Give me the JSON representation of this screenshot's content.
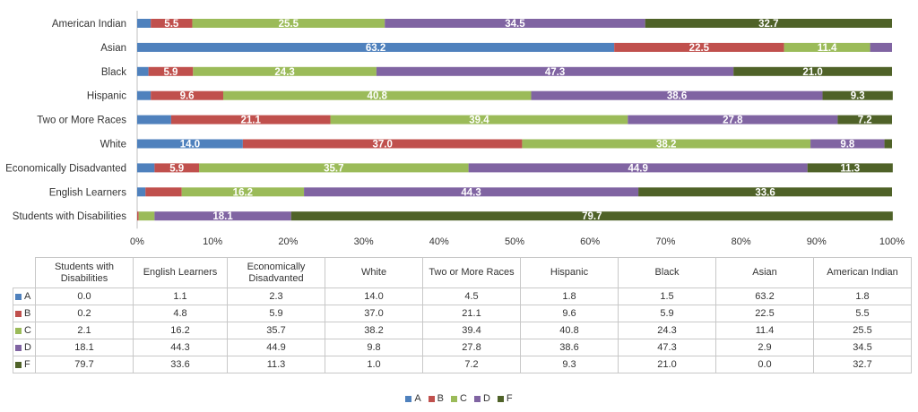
{
  "chart_data": {
    "type": "bar",
    "orientation": "horizontal",
    "stacked": "percent",
    "categories": [
      "American Indian",
      "Asian",
      "Black",
      "Hispanic",
      "Two or More Races",
      "White",
      "Economically Disadvanted",
      "English Learners",
      "Students with Disabilities"
    ],
    "series": [
      {
        "name": "A",
        "color": "#4F81BD",
        "values": [
          1.8,
          63.2,
          1.5,
          1.8,
          4.5,
          14.0,
          2.3,
          1.1,
          0.0
        ]
      },
      {
        "name": "B",
        "color": "#C0504D",
        "values": [
          5.5,
          22.5,
          5.9,
          9.6,
          21.1,
          37.0,
          5.9,
          4.8,
          0.2
        ]
      },
      {
        "name": "C",
        "color": "#9BBB59",
        "values": [
          25.5,
          11.4,
          24.3,
          40.8,
          39.4,
          38.2,
          35.7,
          16.2,
          2.1
        ]
      },
      {
        "name": "D",
        "color": "#8064A2",
        "values": [
          34.5,
          2.9,
          47.3,
          38.6,
          27.8,
          9.8,
          44.9,
          44.3,
          18.1
        ]
      },
      {
        "name": "F",
        "color": "#4F6228",
        "values": [
          32.7,
          0.0,
          21.0,
          9.3,
          7.2,
          1.0,
          11.3,
          33.6,
          79.7
        ]
      }
    ],
    "bar_labels": [
      [
        null,
        "5.5",
        "25.5",
        "34.5",
        "32.7"
      ],
      [
        "63.2",
        "22.5",
        "11.4",
        null,
        null
      ],
      [
        null,
        "5.9",
        "24.3",
        "47.3",
        "21.0"
      ],
      [
        null,
        "9.6",
        "40.8",
        "38.6",
        "9.3"
      ],
      [
        null,
        "21.1",
        "39.4",
        "27.8",
        "7.2"
      ],
      [
        "14.0",
        "37.0",
        "38.2",
        "9.8",
        null
      ],
      [
        null,
        "5.9",
        "35.7",
        "44.9",
        "11.3"
      ],
      [
        null,
        null,
        "16.2",
        "44.3",
        "33.6"
      ],
      [
        null,
        null,
        null,
        "18.1",
        "79.7"
      ]
    ],
    "x_ticks": [
      "0%",
      "10%",
      "20%",
      "30%",
      "40%",
      "50%",
      "60%",
      "70%",
      "80%",
      "90%",
      "100%"
    ],
    "xlim": [
      0,
      100
    ],
    "grid": false,
    "legend": "bottom"
  },
  "table": {
    "columns": [
      "Students with Disabilities",
      "English Learners",
      "Economically Disadvanted",
      "White",
      "Two or More Races",
      "Hispanic",
      "Black",
      "Asian",
      "American Indian"
    ],
    "rows": [
      {
        "label": "A",
        "cells": [
          "0.0",
          "1.1",
          "2.3",
          "14.0",
          "4.5",
          "1.8",
          "1.5",
          "63.2",
          "1.8"
        ]
      },
      {
        "label": "B",
        "cells": [
          "0.2",
          "4.8",
          "5.9",
          "37.0",
          "21.1",
          "9.6",
          "5.9",
          "22.5",
          "5.5"
        ]
      },
      {
        "label": "C",
        "cells": [
          "2.1",
          "16.2",
          "35.7",
          "38.2",
          "39.4",
          "40.8",
          "24.3",
          "11.4",
          "25.5"
        ]
      },
      {
        "label": "D",
        "cells": [
          "18.1",
          "44.3",
          "44.9",
          "9.8",
          "27.8",
          "38.6",
          "47.3",
          "2.9",
          "34.5"
        ]
      },
      {
        "label": "F",
        "cells": [
          "79.7",
          "33.6",
          "11.3",
          "1.0",
          "7.2",
          "9.3",
          "21.0",
          "0.0",
          "32.7"
        ]
      }
    ]
  },
  "legend": {
    "items": [
      "A",
      "B",
      "C",
      "D",
      "F"
    ]
  }
}
